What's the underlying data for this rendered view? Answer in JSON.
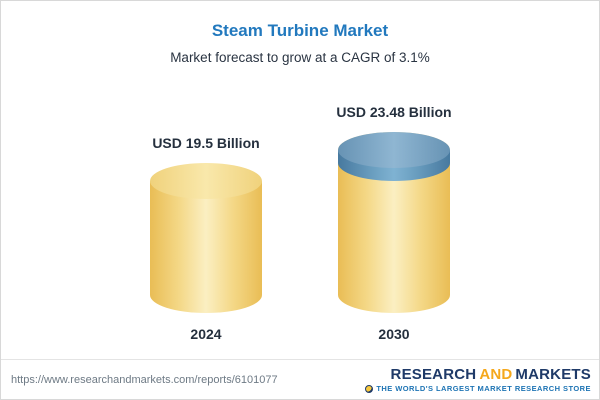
{
  "chart_data": {
    "type": "bar",
    "style": "3d-cylinder",
    "title": "Steam Turbine Market",
    "subtitle": "Market forecast to grow at a CAGR of 3.1%",
    "cagr_percent": 3.1,
    "categories": [
      "2024",
      "2030"
    ],
    "values": [
      19.5,
      23.48
    ],
    "value_labels": [
      "USD 19.5 Billion",
      "USD 23.48 Billion"
    ],
    "unit": "USD Billion",
    "legend": "none",
    "grid": false,
    "colors": {
      "bar_body": "#F6D579",
      "growth_cap": "#5D92BB",
      "title_text": "#2279BE",
      "label_text": "#25303E"
    }
  },
  "footer": {
    "url": "https://www.researchandmarkets.com/reports/6101077",
    "brand": {
      "name_part1": "RESEARCH",
      "name_part2": "AND",
      "name_part3": "MARKETS",
      "tagline": "THE WORLD'S LARGEST MARKET RESEARCH STORE",
      "colors": {
        "navy": "#1F3A68",
        "orange": "#F5A81C",
        "tagline_blue": "#1E74B4"
      }
    }
  }
}
